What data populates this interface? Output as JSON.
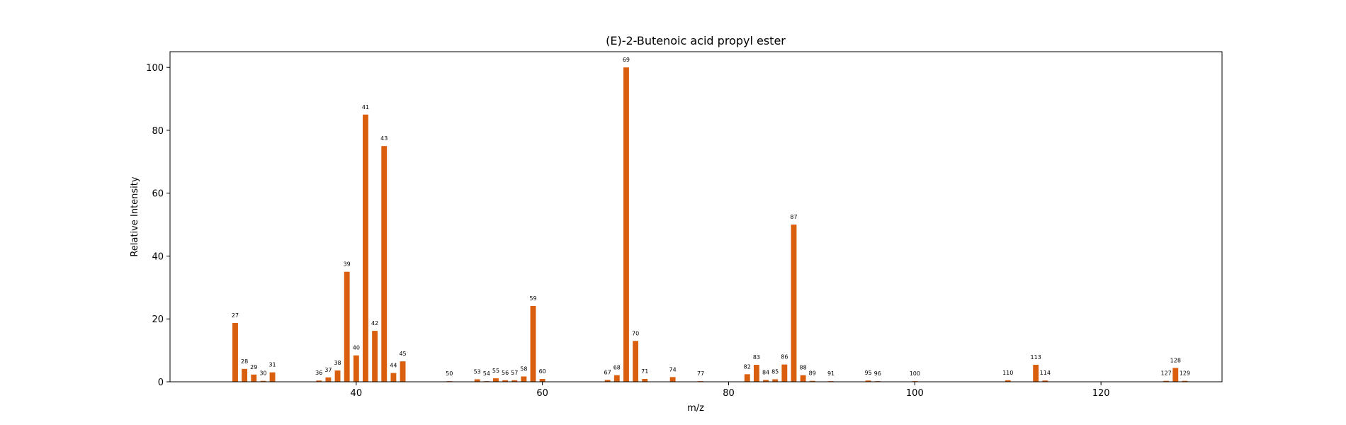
{
  "chart_data": {
    "type": "bar",
    "title": "(E)-2-Butenoic acid propyl ester",
    "xlabel": "m/z",
    "ylabel": "Relative Intensity",
    "xlim": [
      20,
      133
    ],
    "ylim": [
      0,
      105
    ],
    "xticks": [
      40,
      60,
      80,
      100,
      120
    ],
    "yticks": [
      0,
      20,
      40,
      60,
      80,
      100
    ],
    "bar_color": "#d95f0e",
    "grid": false,
    "legend": "none",
    "x": [
      27,
      28,
      29,
      30,
      31,
      36,
      37,
      38,
      39,
      40,
      41,
      42,
      43,
      44,
      45,
      50,
      53,
      54,
      55,
      56,
      57,
      58,
      59,
      60,
      67,
      68,
      69,
      70,
      71,
      74,
      77,
      82,
      83,
      84,
      85,
      86,
      87,
      88,
      89,
      91,
      95,
      96,
      100,
      110,
      113,
      114,
      127,
      128,
      129
    ],
    "values": [
      18.7,
      4.1,
      2.3,
      0.3,
      3.0,
      0.4,
      1.4,
      3.6,
      35.0,
      8.4,
      85.0,
      16.2,
      75.0,
      2.8,
      6.5,
      0.2,
      0.8,
      0.2,
      1.1,
      0.5,
      0.5,
      1.7,
      24.1,
      0.9,
      0.6,
      2.1,
      100.0,
      13.0,
      0.9,
      1.5,
      0.2,
      2.4,
      5.4,
      0.6,
      0.8,
      5.5,
      50.0,
      2.1,
      0.3,
      0.2,
      0.4,
      0.2,
      0.2,
      0.5,
      5.4,
      0.4,
      0.3,
      4.4,
      0.3
    ]
  }
}
